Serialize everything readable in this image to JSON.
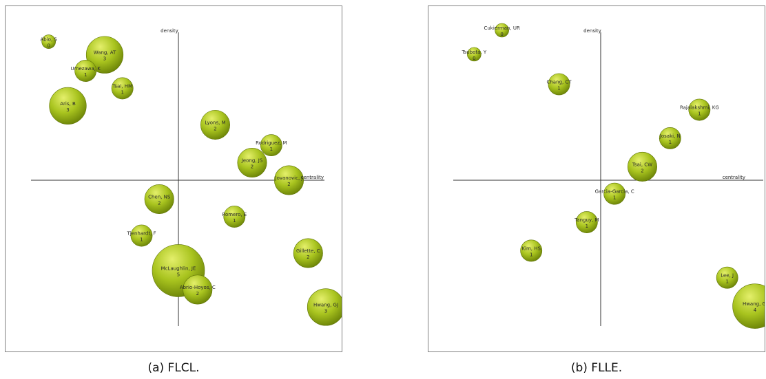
{
  "colors": {
    "bubble_light": "#e4ef6b",
    "bubble_mid": "#a9c41f",
    "bubble_dark": "#6d8508",
    "bubble_text": "#2a2a2a",
    "axis": "#333333",
    "frame": "#7f7f7f"
  },
  "chart_data": [
    {
      "type": "scatter",
      "subtype": "strategic-diagram-bubble",
      "caption": "(a) FLCL.",
      "xlabel": "centrality",
      "ylabel": "density",
      "xlim": [
        -1,
        1
      ],
      "ylim": [
        -1,
        1
      ],
      "grid": false,
      "points": [
        {
          "name": "Abio, S",
          "value": "0",
          "x": -0.88,
          "y": 0.95
        },
        {
          "name": "Wang, AT",
          "value": "3",
          "x": -0.5,
          "y": 0.86
        },
        {
          "name": "Umezawa, K",
          "value": "1",
          "x": -0.63,
          "y": 0.75
        },
        {
          "name": "Tsai, HM",
          "value": "1",
          "x": -0.38,
          "y": 0.63
        },
        {
          "name": "Aris, B",
          "value": "3",
          "x": -0.75,
          "y": 0.51
        },
        {
          "name": "Lyons, M",
          "value": "2",
          "x": 0.25,
          "y": 0.38
        },
        {
          "name": "Rodriguez, M",
          "value": "1",
          "x": 0.63,
          "y": 0.24
        },
        {
          "name": "Jeong, JS",
          "value": "2",
          "x": 0.5,
          "y": 0.12
        },
        {
          "name": "Jovanovic, J",
          "value": "2",
          "x": 0.75,
          "y": 0.0
        },
        {
          "name": "Chen, NS",
          "value": "2",
          "x": -0.13,
          "y": -0.13
        },
        {
          "name": "Romero, E",
          "value": "1",
          "x": 0.38,
          "y": -0.25
        },
        {
          "name": "Tjenhardt, F",
          "value": "1",
          "x": -0.25,
          "y": -0.38
        },
        {
          "name": "Gillette, C",
          "value": "2",
          "x": 0.88,
          "y": -0.5
        },
        {
          "name": "McLaughlin, JE",
          "value": "5",
          "x": 0.0,
          "y": -0.62
        },
        {
          "name": "Abrio-Hoyos, C",
          "value": "2",
          "x": 0.13,
          "y": -0.75
        },
        {
          "name": "Hwang, GJ",
          "value": "3",
          "x": 1.0,
          "y": -0.87
        }
      ]
    },
    {
      "type": "scatter",
      "subtype": "strategic-diagram-bubble",
      "caption": "(b) FLLE.",
      "xlabel": "centrality",
      "ylabel": "density",
      "xlim": [
        -1,
        1
      ],
      "ylim": [
        -1,
        1
      ],
      "grid": false,
      "points": [
        {
          "name": "Cukierman, UR",
          "value": "0",
          "x": -0.64,
          "y": 1.0
        },
        {
          "name": "Tsubota, Y",
          "value": "0",
          "x": -0.82,
          "y": 0.84
        },
        {
          "name": "Chang, CT",
          "value": "1",
          "x": -0.27,
          "y": 0.64
        },
        {
          "name": "Rajalakshmi, KG",
          "value": "1",
          "x": 0.64,
          "y": 0.47
        },
        {
          "name": "Josaki, N",
          "value": "1",
          "x": 0.45,
          "y": 0.28
        },
        {
          "name": "Tsai, CW",
          "value": "2",
          "x": 0.27,
          "y": 0.09
        },
        {
          "name": "Garcia-Garcia, C",
          "value": "1",
          "x": 0.09,
          "y": -0.09
        },
        {
          "name": "Tanguy, M",
          "value": "1",
          "x": -0.09,
          "y": -0.28
        },
        {
          "name": "Kim, HS",
          "value": "1",
          "x": -0.45,
          "y": -0.47
        },
        {
          "name": "Lee, J",
          "value": "1",
          "x": 0.82,
          "y": -0.65
        },
        {
          "name": "Hwang, GJ",
          "value": "4",
          "x": 1.0,
          "y": -0.84
        }
      ]
    }
  ]
}
